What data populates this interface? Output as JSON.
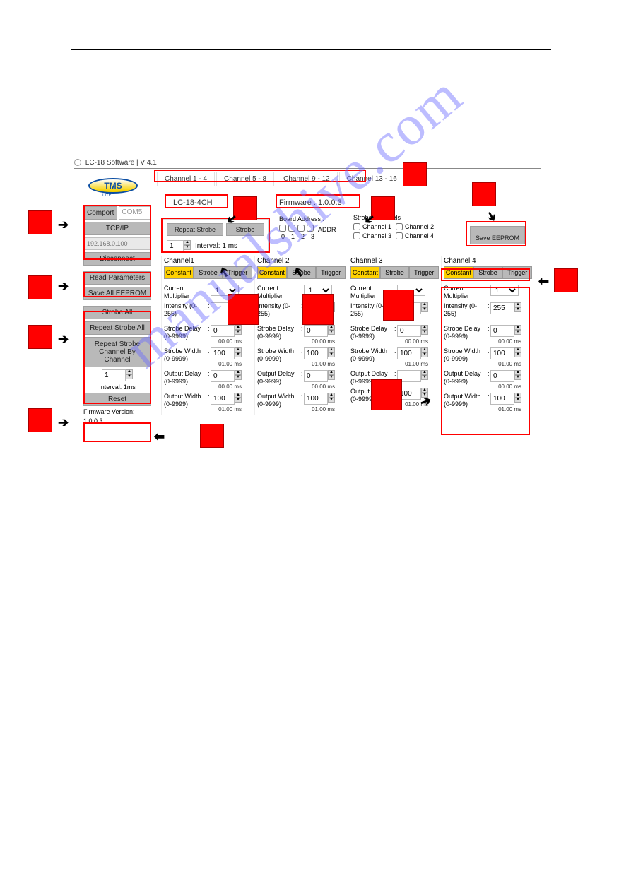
{
  "titlebar": "LC-18 Software | V 4.1",
  "logo_text": "TMS",
  "logo_sub": "LITE",
  "tabs": [
    "Channel 1 - 4",
    "Channel 5 - 8",
    "Channel 9 - 12",
    "Channel 13 - 16"
  ],
  "model": "LC-18-4CH",
  "firmware_label": "Firmware : 1.0.0.3",
  "sidebar": {
    "comport_btn": "Comport",
    "comport_sel": "COM5",
    "tcpip_btn": "TCP/IP",
    "ip_value": "192.168.0.100",
    "disconnect": "Disconnect",
    "read_params": "Read Parameters",
    "save_all": "Save All EEPROM",
    "strobe_all": "Strobe All",
    "repeat_strobe_all": "Repeat Strobe All",
    "repeat_strobe_ch": "Repeat Strobe Channel By Channel",
    "interval_val": "1",
    "interval_lbl": "Interval: 1ms",
    "reset": "Reset",
    "fw_ver_lbl": "Firmware Version:",
    "fw_ver": "1.0.0.3"
  },
  "strobe_panel": {
    "repeat": "Repeat Strobe",
    "strobe": "Strobe",
    "interval_val": "1",
    "interval_lbl": "Interval: 1 ms"
  },
  "board_address": {
    "title": "Board Address :",
    "addr": "ADDR",
    "nums": [
      "0",
      "1",
      "2",
      "3"
    ]
  },
  "strobe_channels": {
    "title": "Strobe Channels",
    "c1": "Channel 1",
    "c2": "Channel 2",
    "c3": "Channel 3",
    "c4": "Channel 4"
  },
  "save_eeprom": "Save EEPROM",
  "modes": [
    "Constant",
    "Strobe",
    "Trigger"
  ],
  "ch_labels": {
    "curmul": "Current Multiplier",
    "intensity": "Intensity (0-255)",
    "sdelay1": "Strobe Delay",
    "sdelay2": "(0-9999)",
    "swidth1": "Strobe Width",
    "swidth2": "(0-9999)",
    "odelay1": "Output Delay",
    "odelay2": "(0-9999)",
    "owidth1": "Output Width",
    "owidth2": "(0-9999)"
  },
  "channels": [
    {
      "title": "Channel1",
      "curmul": "1",
      "intensity": "",
      "sd": "0",
      "sd_ms": "00.00 ms",
      "sw": "100",
      "sw_ms": "01.00 ms",
      "od": "0",
      "od_ms": "00.00 ms",
      "ow": "100",
      "ow_ms": "01.00 ms"
    },
    {
      "title": "Channel 2",
      "curmul": "1",
      "intensity": "",
      "sd": "0",
      "sd_ms": "00.00 ms",
      "sw": "100",
      "sw_ms": "01.00 ms",
      "od": "0",
      "od_ms": "00.00 ms",
      "ow": "100",
      "ow_ms": "01.00 ms"
    },
    {
      "title": "Channel 3",
      "curmul": "",
      "intensity": "",
      "sd": "0",
      "sd_ms": "00.00 ms",
      "sw": "100",
      "sw_ms": "01.00 ms",
      "od": "",
      "od_ms": "",
      "ow": "100",
      "ow_ms": "01.00 ms"
    },
    {
      "title": "Channel 4",
      "curmul": "1",
      "intensity": "255",
      "sd": "0",
      "sd_ms": "00.00 ms",
      "sw": "100",
      "sw_ms": "01.00 ms",
      "od": "0",
      "od_ms": "00.00 ms",
      "ow": "100",
      "ow_ms": "01.00 ms"
    }
  ],
  "colors": {
    "active_tab_bg": "#ffd100",
    "inactive_tab_bg": "#b9b9b9",
    "marker": "#ff0000",
    "watermark": "rgba(108,108,255,0.45)"
  },
  "watermark": "manualshive.com"
}
